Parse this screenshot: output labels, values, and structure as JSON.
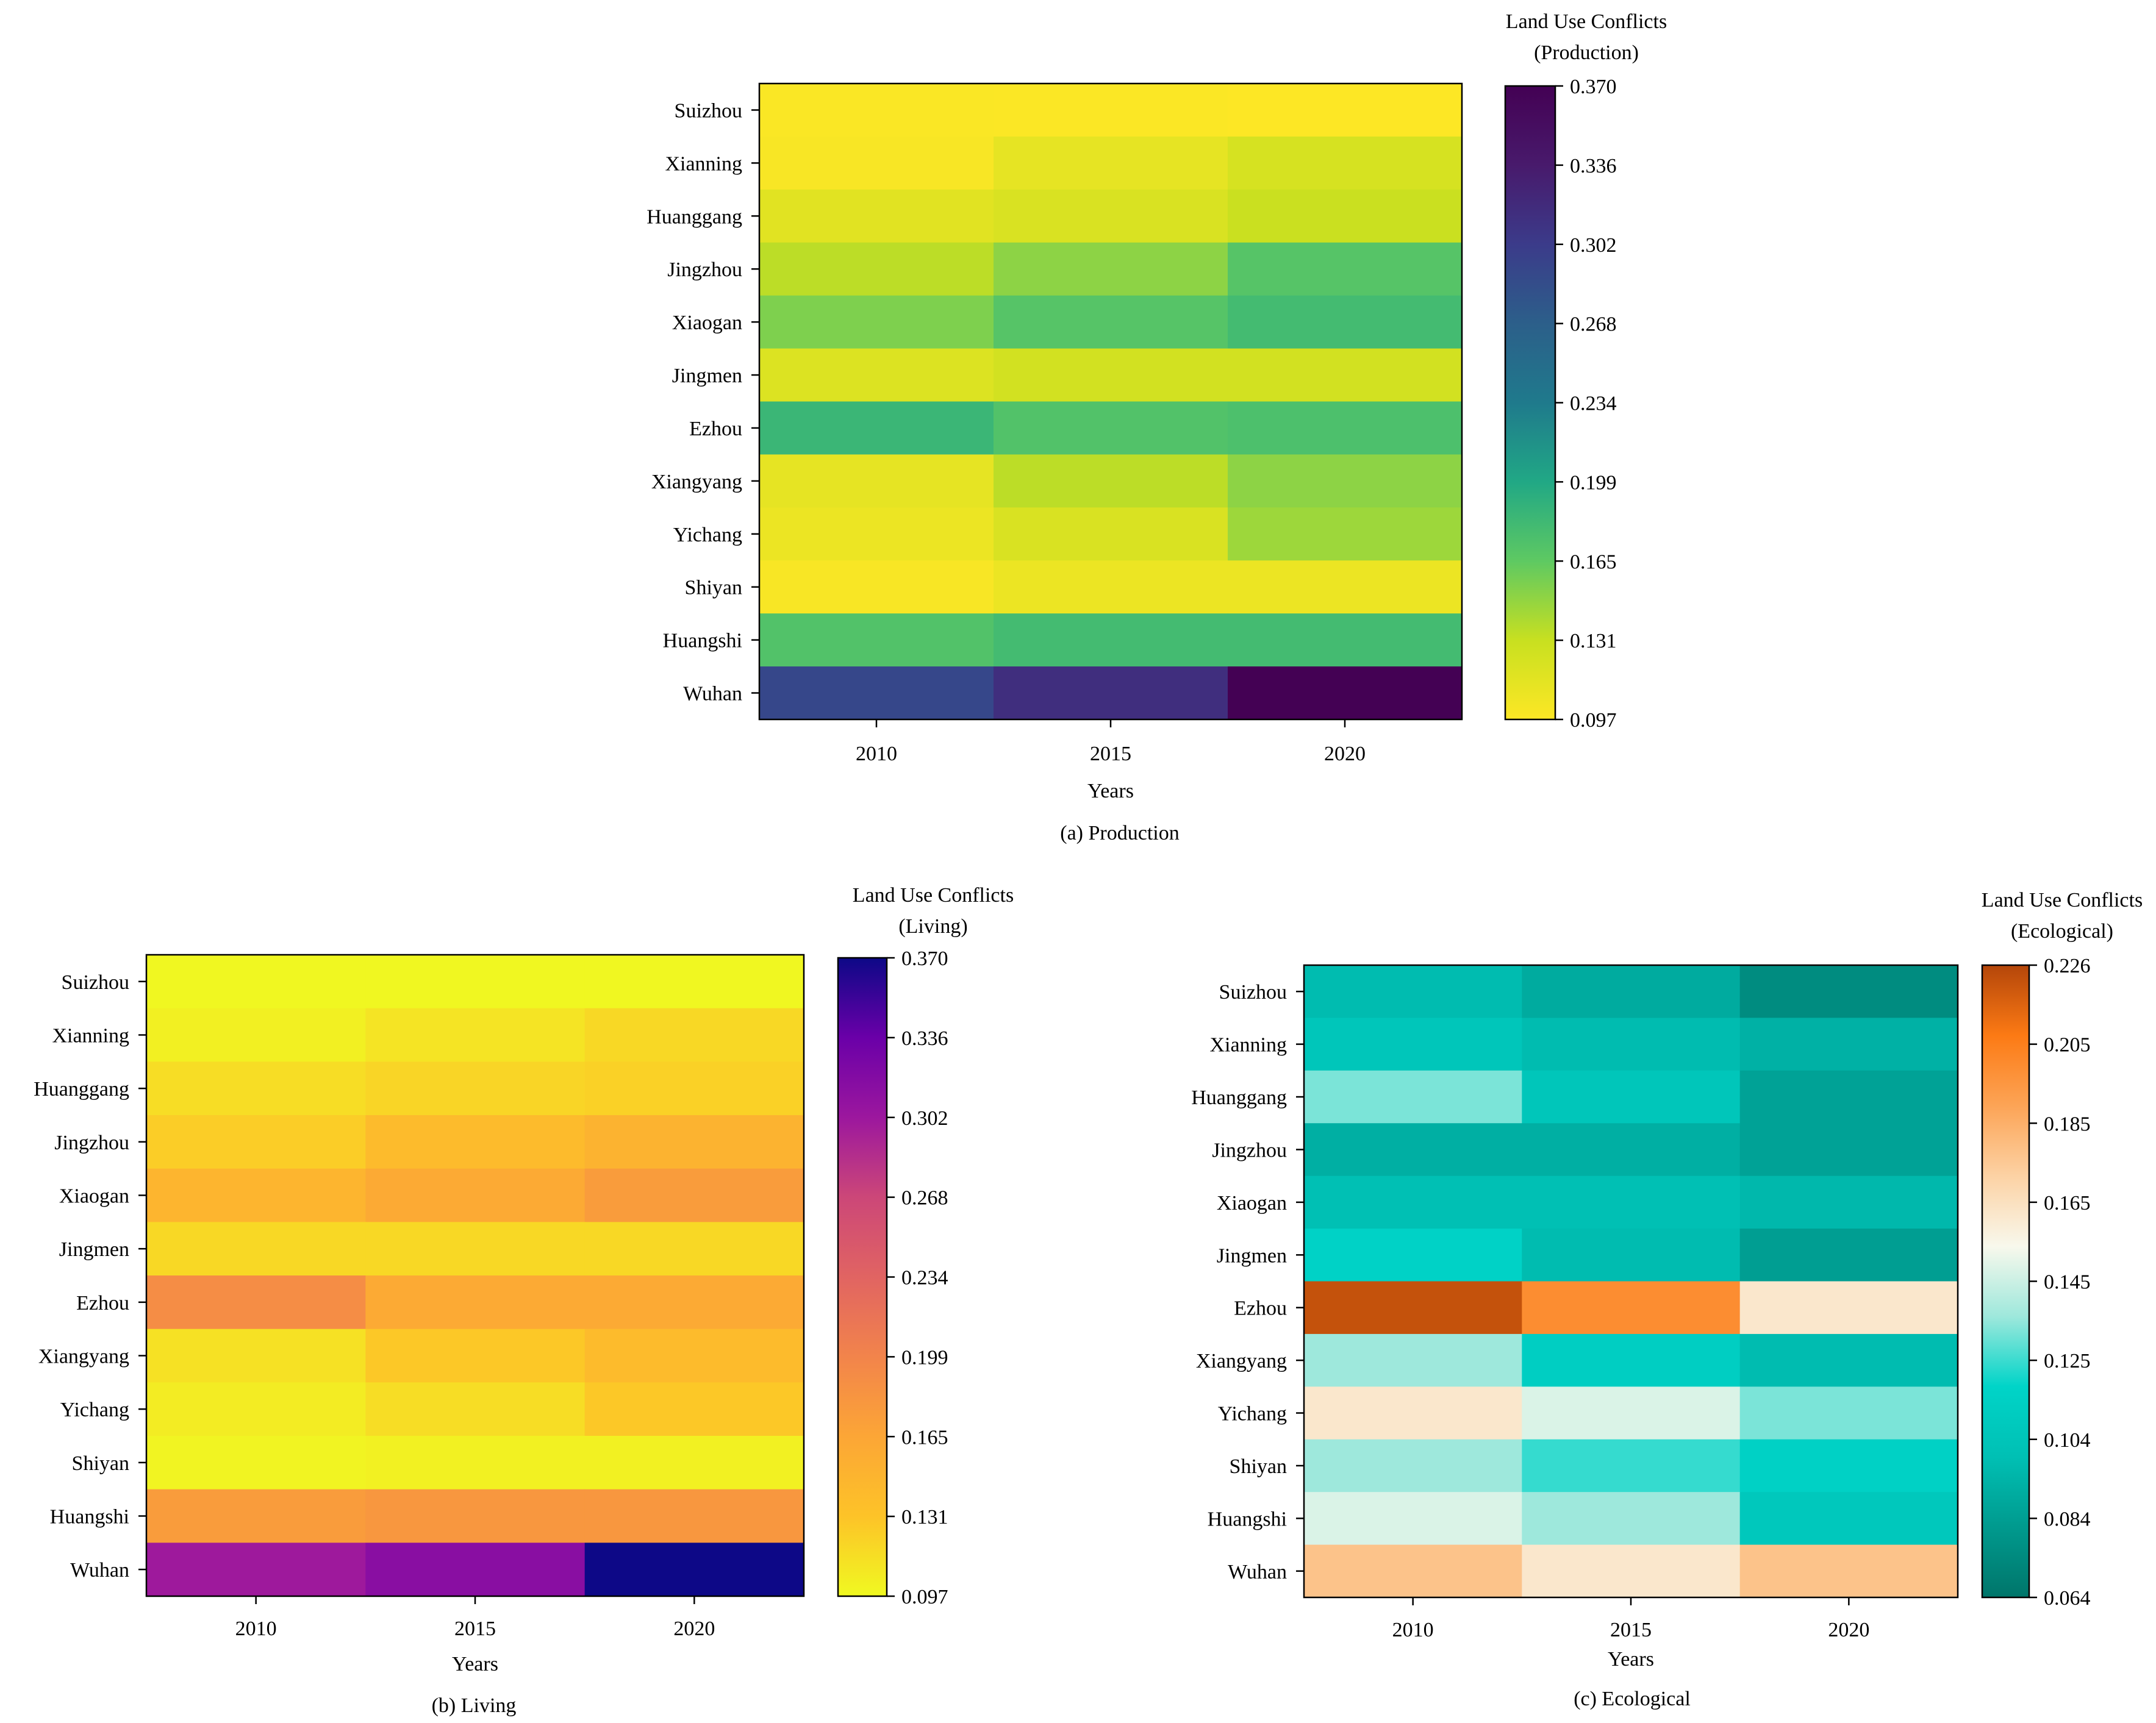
{
  "chart_data": [
    {
      "id": "production",
      "type": "heatmap",
      "caption": "(a) Production",
      "xlabel": "Years",
      "x_categories": [
        "2010",
        "2015",
        "2020"
      ],
      "y_categories": [
        "Suizhou",
        "Xianning",
        "Huanggang",
        "Jingzhou",
        "Xiaogan",
        "Jingmen",
        "Ezhou",
        "Xiangyang",
        "Yichang",
        "Shiyan",
        "Huangshi",
        "Wuhan"
      ],
      "values": [
        [
          0.099,
          0.098,
          0.097
        ],
        [
          0.1,
          0.112,
          0.122
        ],
        [
          0.115,
          0.12,
          0.13
        ],
        [
          0.135,
          0.15,
          0.17
        ],
        [
          0.155,
          0.17,
          0.18
        ],
        [
          0.118,
          0.125,
          0.125
        ],
        [
          0.185,
          0.172,
          0.175
        ],
        [
          0.112,
          0.135,
          0.15
        ],
        [
          0.108,
          0.12,
          0.145
        ],
        [
          0.1,
          0.108,
          0.108
        ],
        [
          0.172,
          0.18,
          0.18
        ],
        [
          0.29,
          0.315,
          0.37
        ]
      ],
      "colorbar": {
        "title_line1": "Land Use Conflicts",
        "title_line2": "(Production)",
        "min": 0.097,
        "max": 0.37,
        "ticks": [
          "0.370",
          "0.336",
          "0.302",
          "0.268",
          "0.234",
          "0.199",
          "0.165",
          "0.131",
          "0.097"
        ],
        "colormap": [
          "#fde725",
          "#c8e020",
          "#5ec962",
          "#21a885",
          "#1f7a8c",
          "#2c5f8a",
          "#3b3b8a",
          "#481a6c",
          "#440154"
        ]
      }
    },
    {
      "id": "living",
      "type": "heatmap",
      "caption": "(b) Living",
      "xlabel": "Years",
      "x_categories": [
        "2010",
        "2015",
        "2020"
      ],
      "y_categories": [
        "Suizhou",
        "Xianning",
        "Huanggang",
        "Jingzhou",
        "Xiaogan",
        "Jingmen",
        "Ezhou",
        "Xiangyang",
        "Yichang",
        "Shiyan",
        "Huangshi",
        "Wuhan"
      ],
      "values": [
        [
          0.098,
          0.098,
          0.098
        ],
        [
          0.103,
          0.11,
          0.118
        ],
        [
          0.115,
          0.12,
          0.122
        ],
        [
          0.125,
          0.14,
          0.15
        ],
        [
          0.148,
          0.16,
          0.175
        ],
        [
          0.118,
          0.118,
          0.118
        ],
        [
          0.19,
          0.16,
          0.16
        ],
        [
          0.112,
          0.128,
          0.14
        ],
        [
          0.105,
          0.115,
          0.128
        ],
        [
          0.1,
          0.102,
          0.102
        ],
        [
          0.175,
          0.18,
          0.18
        ],
        [
          0.3,
          0.315,
          0.37
        ]
      ],
      "colorbar": {
        "title_line1": "Land Use Conflicts",
        "title_line2": "(Living)",
        "min": 0.097,
        "max": 0.37,
        "ticks": [
          "0.370",
          "0.336",
          "0.302",
          "0.268",
          "0.234",
          "0.199",
          "0.165",
          "0.131",
          "0.097"
        ],
        "colormap": [
          "#f0f921",
          "#fdc328",
          "#fca636",
          "#f2844b",
          "#e16462",
          "#cc4778",
          "#9c179e",
          "#6a00a8",
          "#0d0887"
        ]
      }
    },
    {
      "id": "ecological",
      "type": "heatmap",
      "caption": "(c) Ecological",
      "xlabel": "Years",
      "x_categories": [
        "2010",
        "2015",
        "2020"
      ],
      "y_categories": [
        "Suizhou",
        "Xianning",
        "Huanggang",
        "Jingzhou",
        "Xiaogan",
        "Jingmen",
        "Ezhou",
        "Xiangyang",
        "Yichang",
        "Shiyan",
        "Huangshi",
        "Wuhan"
      ],
      "values": [
        [
          0.098,
          0.09,
          0.075
        ],
        [
          0.105,
          0.098,
          0.093
        ],
        [
          0.132,
          0.105,
          0.086
        ],
        [
          0.092,
          0.092,
          0.086
        ],
        [
          0.1,
          0.1,
          0.096
        ],
        [
          0.116,
          0.098,
          0.084
        ],
        [
          0.222,
          0.2,
          0.162
        ],
        [
          0.136,
          0.113,
          0.098
        ],
        [
          0.162,
          0.148,
          0.132
        ],
        [
          0.136,
          0.124,
          0.115
        ],
        [
          0.148,
          0.136,
          0.107
        ],
        [
          0.178,
          0.162,
          0.178
        ]
      ],
      "colorbar": {
        "title_line1": "Land Use Conflicts",
        "title_line2": "(Ecological)",
        "min": 0.064,
        "max": 0.226,
        "ticks": [
          "0.226",
          "0.205",
          "0.185",
          "0.165",
          "0.145",
          "0.125",
          "0.104",
          "0.084",
          "0.064"
        ],
        "colormap": [
          "#00756a",
          "#009a8e",
          "#00c0b4",
          "#00d4c8",
          "#9ee8dc",
          "#f8f8ec",
          "#fcd2a4",
          "#fca456",
          "#fc7a14",
          "#b4460a"
        ]
      }
    }
  ]
}
